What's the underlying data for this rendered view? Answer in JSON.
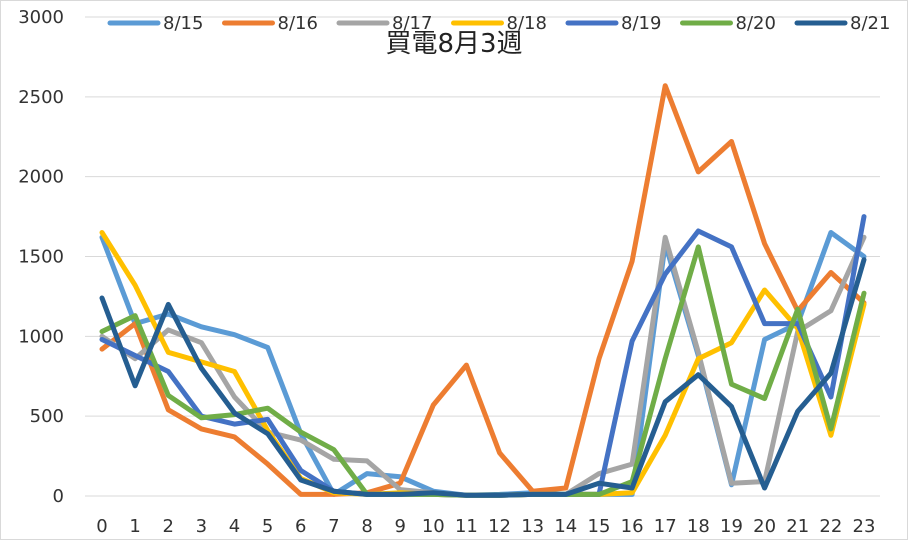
{
  "chart_data": {
    "type": "line",
    "title": "買電8月3週",
    "xlabel": "",
    "ylabel": "",
    "ylim": [
      0,
      3000
    ],
    "yticks": [
      0,
      500,
      1000,
      1500,
      2000,
      2500,
      3000
    ],
    "x": [
      "0",
      "1",
      "2",
      "3",
      "4",
      "5",
      "6",
      "7",
      "8",
      "9",
      "10",
      "11",
      "12",
      "13",
      "14",
      "15",
      "16",
      "17",
      "18",
      "19",
      "20",
      "21",
      "22",
      "23"
    ],
    "grid": "horizontal",
    "legend_position": "top",
    "series": [
      {
        "name": "8/15",
        "color": "#5B9BD5",
        "values": [
          1620,
          1080,
          1140,
          1060,
          1010,
          930,
          390,
          10,
          140,
          120,
          30,
          5,
          10,
          20,
          10,
          10,
          10,
          1580,
          880,
          70,
          980,
          1080,
          1650,
          1500
        ]
      },
      {
        "name": "8/16",
        "color": "#ED7D31",
        "values": [
          920,
          1080,
          540,
          420,
          370,
          200,
          10,
          10,
          20,
          80,
          570,
          820,
          270,
          30,
          50,
          860,
          1470,
          2570,
          2030,
          2220,
          1580,
          1160,
          1400,
          1210
        ]
      },
      {
        "name": "8/17",
        "color": "#A5A5A5",
        "values": [
          1000,
          860,
          1040,
          960,
          620,
          400,
          350,
          230,
          220,
          40,
          20,
          5,
          5,
          10,
          10,
          140,
          200,
          1620,
          900,
          80,
          90,
          1030,
          1160,
          1620
        ]
      },
      {
        "name": "8/18",
        "color": "#FFC000",
        "values": [
          1650,
          1320,
          900,
          840,
          780,
          410,
          110,
          20,
          10,
          20,
          10,
          5,
          5,
          10,
          10,
          10,
          20,
          380,
          860,
          960,
          1290,
          1050,
          380,
          1200
        ]
      },
      {
        "name": "8/19",
        "color": "#4472C4",
        "values": [
          980,
          880,
          780,
          500,
          450,
          480,
          160,
          30,
          10,
          10,
          10,
          5,
          5,
          10,
          10,
          10,
          970,
          1390,
          1660,
          1560,
          1080,
          1080,
          620,
          1750
        ]
      },
      {
        "name": "8/20",
        "color": "#70AD47",
        "values": [
          1030,
          1130,
          630,
          490,
          510,
          550,
          400,
          290,
          10,
          10,
          10,
          5,
          5,
          10,
          10,
          10,
          90,
          860,
          1560,
          700,
          610,
          1170,
          420,
          1270
        ]
      },
      {
        "name": "8/21",
        "color": "#255E91",
        "values": [
          1240,
          690,
          1200,
          800,
          520,
          390,
          100,
          30,
          10,
          10,
          20,
          5,
          5,
          10,
          10,
          80,
          50,
          590,
          760,
          560,
          50,
          530,
          770,
          1480
        ]
      }
    ]
  }
}
